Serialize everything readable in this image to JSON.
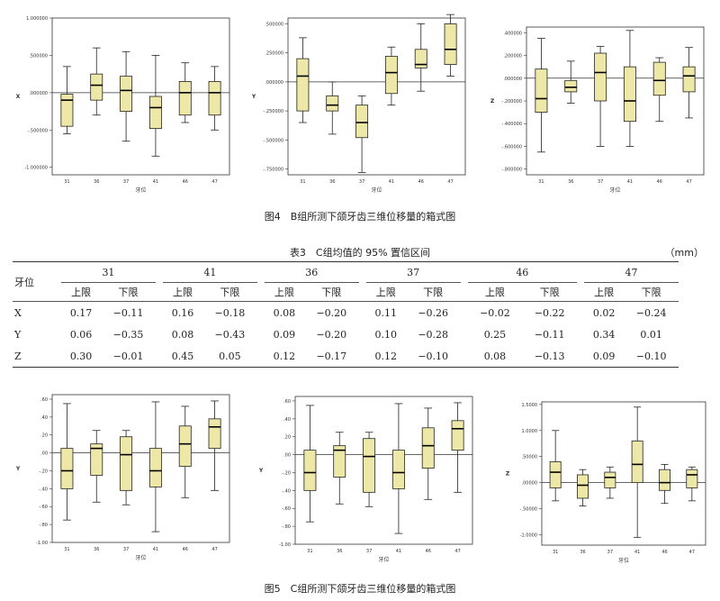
{
  "figure4": {
    "caption": "图4　B组所测下颌牙齿三维位移量的箱式图",
    "xlabel": "牙位"
  },
  "table3": {
    "title": "表3　C组均值的 95% 置信区间",
    "unit": "（mm）",
    "row_header": "牙位",
    "teeth": [
      "31",
      "41",
      "36",
      "37",
      "46",
      "47"
    ],
    "upper_label": "上限",
    "lower_label": "下限",
    "rows": [
      {
        "axis": "X",
        "values": [
          "0.17",
          "−0.11",
          "0.16",
          "−0.18",
          "0.08",
          "−0.20",
          "0.11",
          "−0.26",
          "−0.02",
          "−0.22",
          "0.02",
          "−0.24"
        ]
      },
      {
        "axis": "Y",
        "values": [
          "0.06",
          "−0.35",
          "0.08",
          "−0.43",
          "0.09",
          "−0.20",
          "0.10",
          "−0.28",
          "0.25",
          "−0.11",
          "0.34",
          "0.01"
        ]
      },
      {
        "axis": "Z",
        "values": [
          "0.30",
          "−0.01",
          "0.45",
          "0.05",
          "0.12",
          "−0.17",
          "0.12",
          "−0.10",
          "0.08",
          "−0.13",
          "0.09",
          "−0.10"
        ]
      }
    ]
  },
  "figure5": {
    "caption": "图5　C组所测下颌牙齿三维位移量的箱式图",
    "xlabel": "牙位"
  },
  "chart_data": [
    {
      "type": "box",
      "figure": "4",
      "ylabel": "X",
      "categories": [
        "31",
        "36",
        "37",
        "41",
        "46",
        "47"
      ],
      "yticks": [
        1.0,
        0.5,
        0.0,
        -0.5,
        -1.0
      ],
      "ytick_labels": [
        "1.000000",
        ".500000",
        ".000000",
        "-.500000",
        "-1.000000"
      ],
      "ylim": [
        -1.1,
        1.0
      ],
      "reference_line": 0,
      "boxes": [
        {
          "min": -0.55,
          "q1": -0.45,
          "median": -0.1,
          "q3": -0.02,
          "max": 0.35
        },
        {
          "min": -0.3,
          "q1": -0.1,
          "median": 0.1,
          "q3": 0.25,
          "max": 0.6
        },
        {
          "min": -0.65,
          "q1": -0.25,
          "median": 0.03,
          "q3": 0.22,
          "max": 0.55
        },
        {
          "min": -0.85,
          "q1": -0.48,
          "median": -0.2,
          "q3": -0.05,
          "max": 0.5
        },
        {
          "min": -0.4,
          "q1": -0.3,
          "median": 0.0,
          "q3": 0.15,
          "max": 0.4
        },
        {
          "min": -0.5,
          "q1": -0.3,
          "median": 0.0,
          "q3": 0.15,
          "max": 0.35
        }
      ]
    },
    {
      "type": "box",
      "figure": "4",
      "ylabel": "Y",
      "categories": [
        "31",
        "36",
        "37",
        "41",
        "46",
        "47"
      ],
      "yticks": [
        0.5,
        0.25,
        0.0,
        -0.25,
        -0.5,
        -0.75
      ],
      "ytick_labels": [
        ".500000",
        ".250000",
        ".000000",
        "-.250000",
        "-.500000",
        "-.750000"
      ],
      "ylim": [
        -0.8,
        0.55
      ],
      "reference_line": 0,
      "boxes": [
        {
          "min": -0.35,
          "q1": -0.25,
          "median": 0.05,
          "q3": 0.2,
          "max": 0.38
        },
        {
          "min": -0.45,
          "q1": -0.25,
          "median": -0.2,
          "q3": -0.12,
          "max": 0.0
        },
        {
          "min": -0.78,
          "q1": -0.48,
          "median": -0.35,
          "q3": -0.2,
          "max": -0.12
        },
        {
          "min": -0.2,
          "q1": -0.1,
          "median": 0.08,
          "q3": 0.22,
          "max": 0.3
        },
        {
          "min": -0.08,
          "q1": 0.12,
          "median": 0.15,
          "q3": 0.28,
          "max": 0.5
        },
        {
          "min": 0.05,
          "q1": 0.15,
          "median": 0.28,
          "q3": 0.5,
          "max": 0.58
        }
      ]
    },
    {
      "type": "box",
      "figure": "4",
      "ylabel": "Z",
      "categories": [
        "31",
        "36",
        "37",
        "41",
        "46",
        "47"
      ],
      "yticks": [
        0.4,
        0.2,
        0.0,
        -0.2,
        -0.4,
        -0.6,
        -0.8
      ],
      "ytick_labels": [
        ".400000",
        ".200000",
        ".000000",
        "-.200000",
        "-.400000",
        "-.600000",
        "-.800000"
      ],
      "ylim": [
        -0.85,
        0.45
      ],
      "reference_line": 0,
      "boxes": [
        {
          "min": -0.65,
          "q1": -0.3,
          "median": -0.18,
          "q3": 0.08,
          "max": 0.35
        },
        {
          "min": -0.22,
          "q1": -0.12,
          "median": -0.08,
          "q3": -0.02,
          "max": 0.15
        },
        {
          "min": -0.6,
          "q1": -0.2,
          "median": 0.05,
          "q3": 0.22,
          "max": 0.28
        },
        {
          "min": -0.6,
          "q1": -0.38,
          "median": -0.2,
          "q3": 0.1,
          "max": 0.42
        },
        {
          "min": -0.38,
          "q1": -0.15,
          "median": -0.02,
          "q3": 0.14,
          "max": 0.18
        },
        {
          "min": -0.35,
          "q1": -0.12,
          "median": 0.02,
          "q3": 0.1,
          "max": 0.27
        }
      ]
    },
    {
      "type": "box",
      "figure": "5",
      "ylabel": "Y",
      "categories": [
        "31",
        "36",
        "37",
        "41",
        "46",
        "47"
      ],
      "yticks": [
        0.6,
        0.4,
        0.2,
        0.0,
        -0.2,
        -0.4,
        -0.6,
        -0.8,
        -1.0
      ],
      "ytick_labels": [
        ".60",
        ".40",
        ".20",
        ".00",
        "-.20",
        "-.40",
        "-.60",
        "-.80",
        "-1.00"
      ],
      "ylim": [
        -1.0,
        0.65
      ],
      "reference_line": 0,
      "boxes": [
        {
          "min": -0.75,
          "q1": -0.4,
          "median": -0.2,
          "q3": 0.05,
          "max": 0.55
        },
        {
          "min": -0.55,
          "q1": -0.25,
          "median": 0.05,
          "q3": 0.1,
          "max": 0.25
        },
        {
          "min": -0.58,
          "q1": -0.42,
          "median": -0.02,
          "q3": 0.18,
          "max": 0.25
        },
        {
          "min": -0.88,
          "q1": -0.38,
          "median": -0.2,
          "q3": 0.05,
          "max": 0.57
        },
        {
          "min": -0.5,
          "q1": -0.15,
          "median": 0.1,
          "q3": 0.3,
          "max": 0.52
        },
        {
          "min": -0.42,
          "q1": 0.05,
          "median": 0.29,
          "q3": 0.38,
          "max": 0.58
        }
      ]
    },
    {
      "type": "box",
      "figure": "5",
      "ylabel": "Y",
      "categories": [
        "31",
        "36",
        "37",
        "41",
        "46",
        "47"
      ],
      "yticks": [
        0.6,
        0.4,
        0.2,
        0.0,
        -0.2,
        -0.4,
        -0.6,
        -0.8,
        -1.0
      ],
      "ytick_labels": [
        ".60",
        ".40",
        ".20",
        ".00",
        "-.20",
        "-.40",
        "-.60",
        "-.80",
        "-1.00"
      ],
      "ylim": [
        -1.0,
        0.65
      ],
      "reference_line": 0,
      "boxes": [
        {
          "min": -0.75,
          "q1": -0.4,
          "median": -0.2,
          "q3": 0.05,
          "max": 0.55
        },
        {
          "min": -0.55,
          "q1": -0.25,
          "median": 0.05,
          "q3": 0.1,
          "max": 0.25
        },
        {
          "min": -0.58,
          "q1": -0.42,
          "median": -0.02,
          "q3": 0.18,
          "max": 0.25
        },
        {
          "min": -0.88,
          "q1": -0.38,
          "median": -0.2,
          "q3": 0.05,
          "max": 0.57
        },
        {
          "min": -0.5,
          "q1": -0.15,
          "median": 0.1,
          "q3": 0.3,
          "max": 0.52
        },
        {
          "min": -0.42,
          "q1": 0.05,
          "median": 0.29,
          "q3": 0.38,
          "max": 0.58
        }
      ]
    },
    {
      "type": "box",
      "figure": "5",
      "ylabel": "Z",
      "categories": [
        "31",
        "36",
        "37",
        "41",
        "46",
        "47"
      ],
      "yticks": [
        1.5,
        1.0,
        0.5,
        0.0,
        -0.5,
        -1.0
      ],
      "ytick_labels": [
        "1.5000",
        "1.0000",
        ".50000",
        ".00000",
        "-.50000",
        "-1.0000"
      ],
      "ylim": [
        -1.2,
        1.55
      ],
      "reference_line": 0,
      "boxes": [
        {
          "min": -0.35,
          "q1": -0.1,
          "median": 0.2,
          "q3": 0.4,
          "max": 1.0
        },
        {
          "min": -0.45,
          "q1": -0.3,
          "median": -0.05,
          "q3": 0.15,
          "max": 0.25
        },
        {
          "min": -0.3,
          "q1": -0.1,
          "median": 0.1,
          "q3": 0.2,
          "max": 0.3
        },
        {
          "min": -1.05,
          "q1": 0.0,
          "median": 0.35,
          "q3": 0.8,
          "max": 1.45
        },
        {
          "min": -0.4,
          "q1": -0.15,
          "median": 0.0,
          "q3": 0.25,
          "max": 0.35
        },
        {
          "min": -0.35,
          "q1": -0.1,
          "median": 0.15,
          "q3": 0.25,
          "max": 0.3
        }
      ]
    }
  ]
}
